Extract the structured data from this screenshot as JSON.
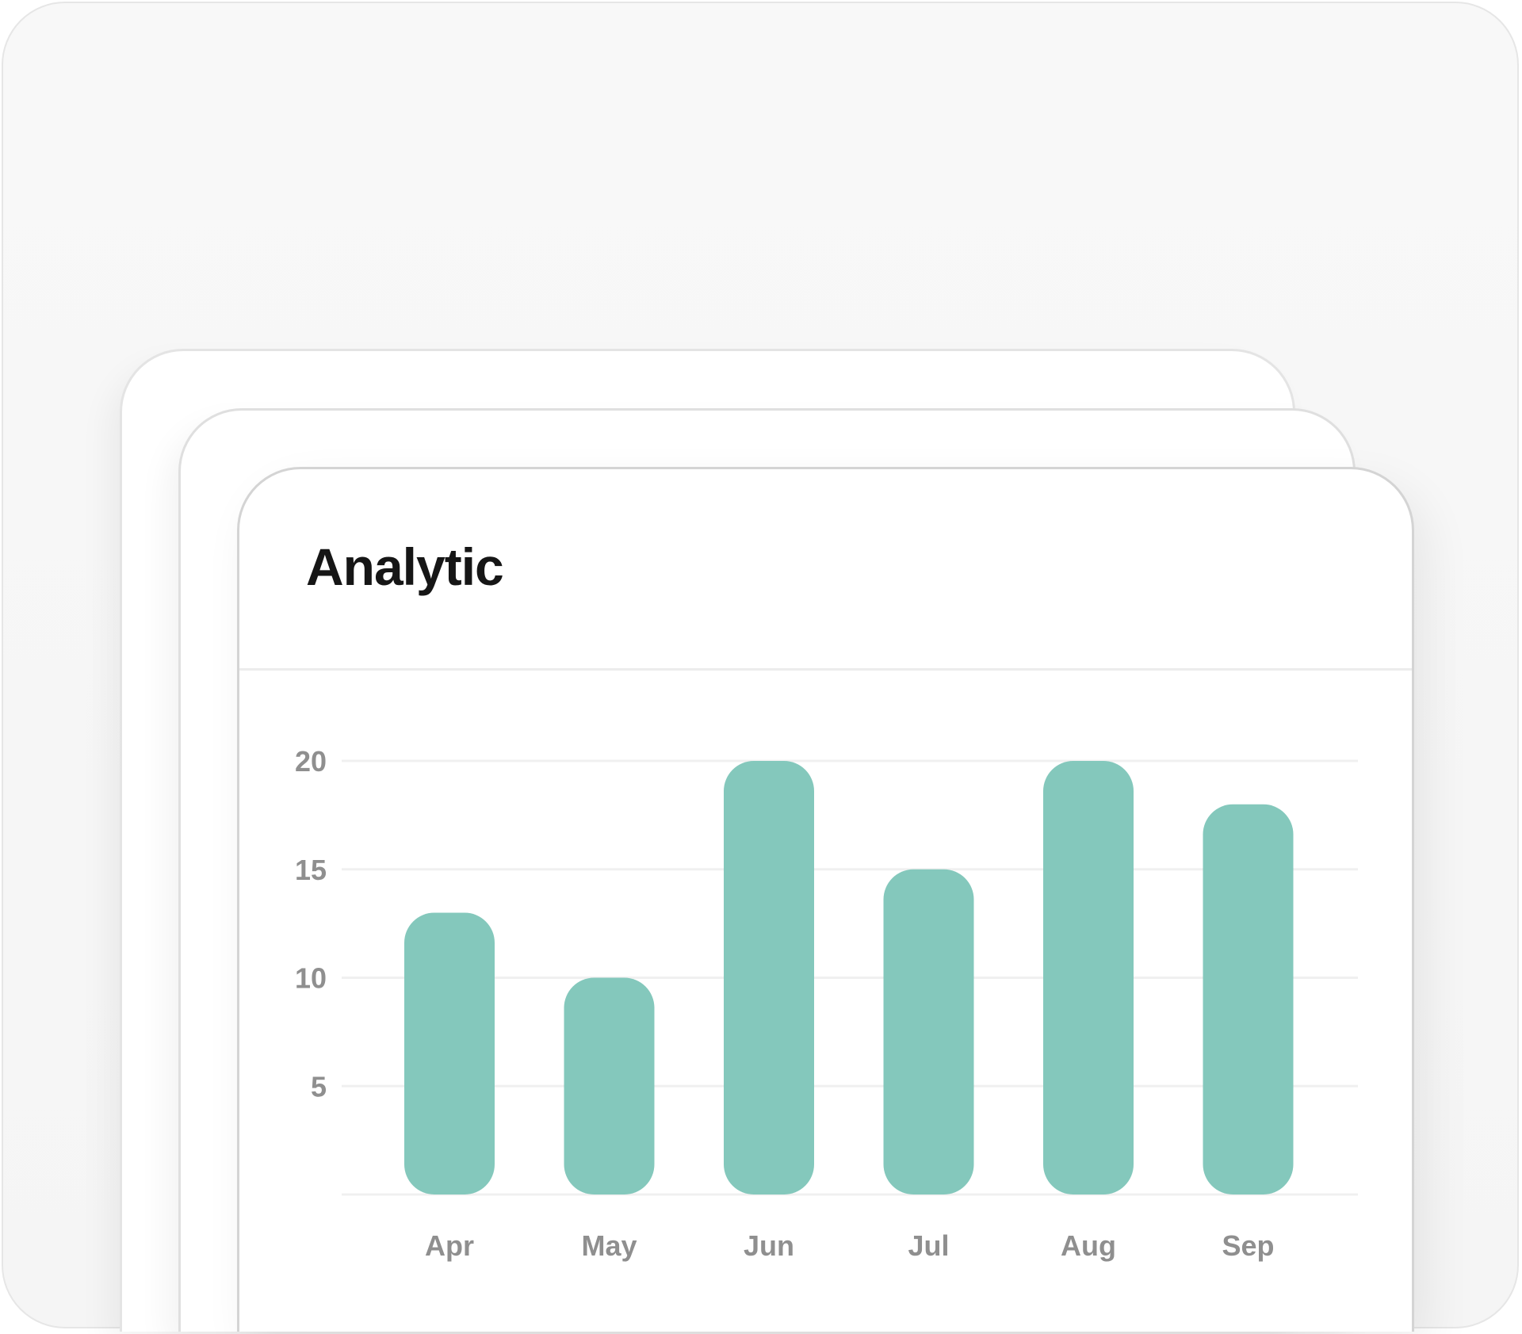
{
  "card": {
    "title": "Analytic"
  },
  "colors": {
    "bar": "#84c8bc",
    "gridline": "#f0f0f0",
    "tick_label": "#8f8f8f",
    "title": "#161616"
  },
  "chart_data": {
    "type": "bar",
    "categories": [
      "Apr",
      "May",
      "Jun",
      "Jul",
      "Aug",
      "Sep"
    ],
    "values": [
      13,
      10,
      20,
      15,
      20,
      18
    ],
    "ylim": [
      0,
      20
    ],
    "yticks": [
      5,
      10,
      15,
      20
    ],
    "grid": true,
    "title": "",
    "xlabel": "",
    "ylabel": ""
  }
}
